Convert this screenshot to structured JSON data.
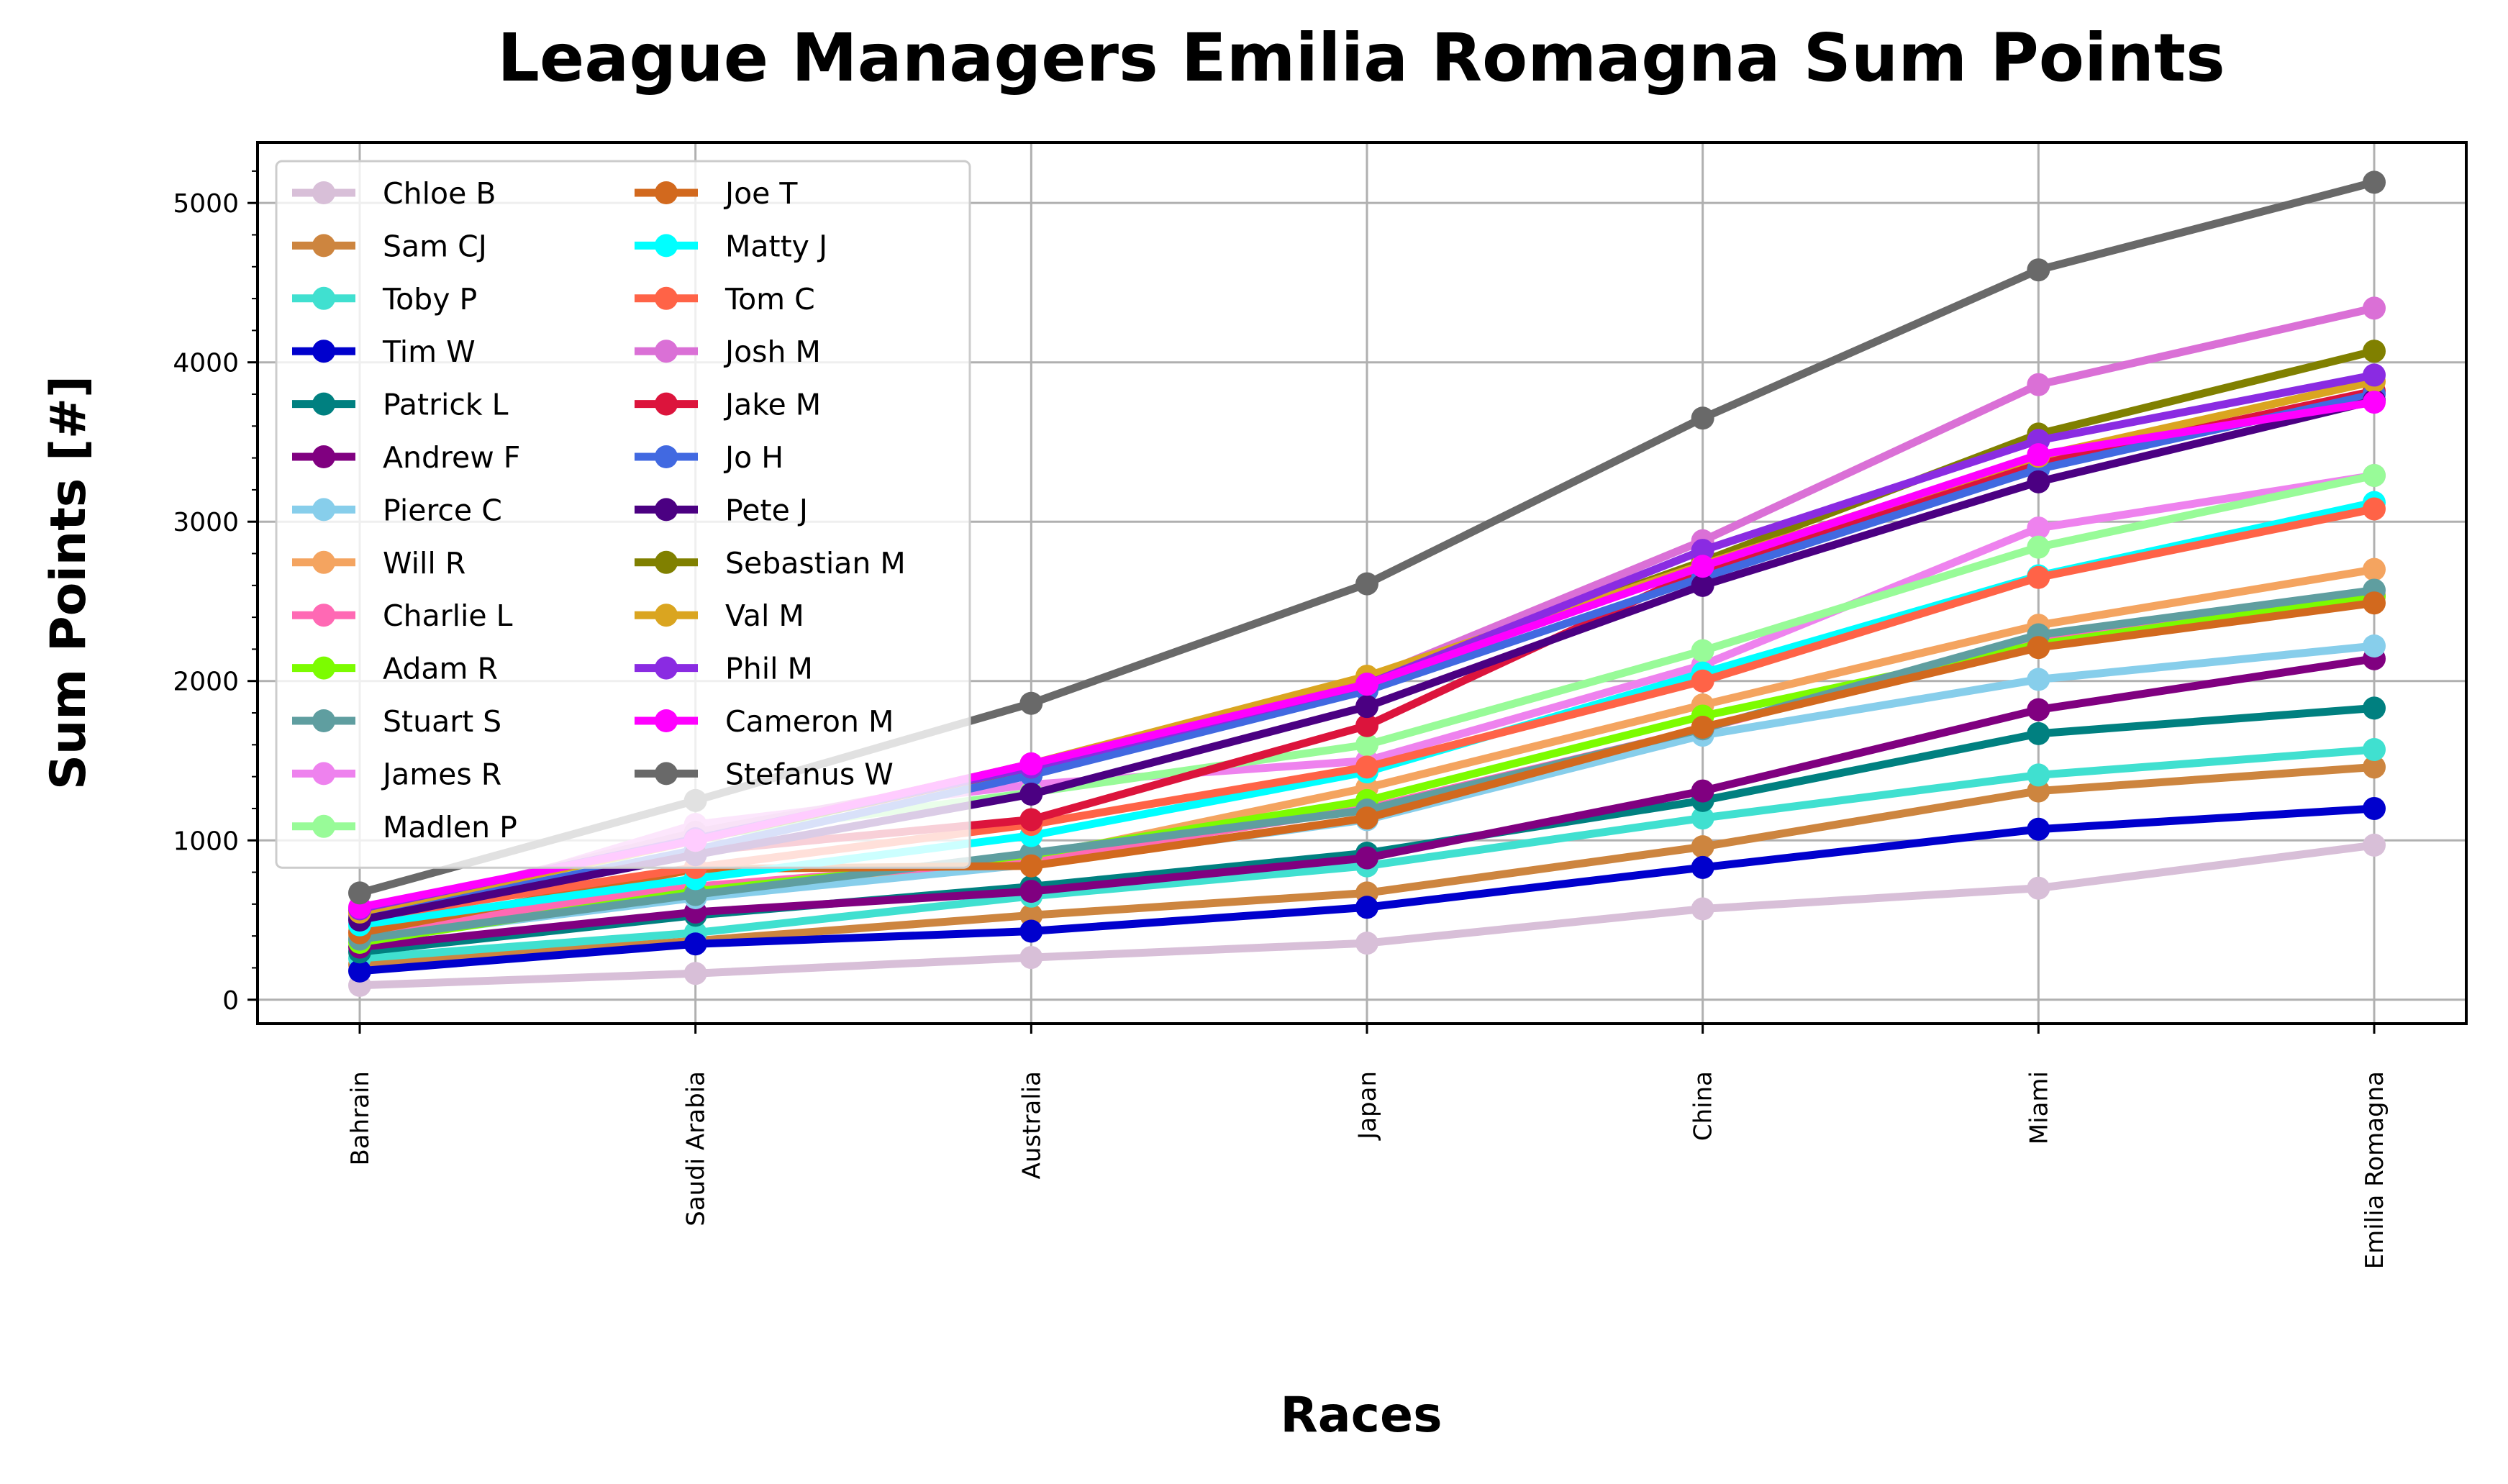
{
  "chart_data": {
    "type": "line",
    "title": "League Managers Emilia Romagna Sum Points",
    "xlabel": "Races",
    "ylabel": "Sum Points [#]",
    "categories": [
      "Bahrain",
      "Saudi Arabia",
      "Australia",
      "Japan",
      "China",
      "Miami",
      "Emilia Romagna"
    ],
    "yticks": [
      0,
      1000,
      2000,
      3000,
      4000,
      5000
    ],
    "ylim": [
      -150,
      5380
    ],
    "grid": true,
    "legend_position": "upper-left",
    "legend_columns": 2,
    "series": [
      {
        "name": "Chloe B",
        "color": "#d8bfd8",
        "values": [
          90,
          165,
          265,
          355,
          570,
          700,
          970
        ]
      },
      {
        "name": "Sam CJ",
        "color": "#cd853f",
        "values": [
          220,
          370,
          530,
          670,
          960,
          1310,
          1460
        ]
      },
      {
        "name": "Toby P",
        "color": "#40e0d0",
        "values": [
          260,
          420,
          650,
          840,
          1140,
          1410,
          1570
        ]
      },
      {
        "name": "Tim W",
        "color": "#0000cd",
        "values": [
          180,
          350,
          430,
          580,
          830,
          1070,
          1200
        ]
      },
      {
        "name": "Patrick L",
        "color": "#008080",
        "values": [
          300,
          530,
          710,
          920,
          1250,
          1670,
          1830
        ]
      },
      {
        "name": "Andrew F",
        "color": "#800080",
        "values": [
          330,
          550,
          680,
          890,
          1310,
          1820,
          2140
        ]
      },
      {
        "name": "Pierce C",
        "color": "#87ceeb",
        "values": [
          380,
          640,
          850,
          1130,
          1660,
          2010,
          2220
        ]
      },
      {
        "name": "Will R",
        "color": "#f4a460",
        "values": [
          400,
          690,
          890,
          1330,
          1850,
          2350,
          2700
        ]
      },
      {
        "name": "Charlie L",
        "color": "#ff69b4",
        "values": [
          430,
          710,
          880,
          1200,
          1700,
          2260,
          2540
        ]
      },
      {
        "name": "Adam R",
        "color": "#7cfc00",
        "values": [
          360,
          680,
          910,
          1250,
          1780,
          2230,
          2530
        ]
      },
      {
        "name": "Stuart S",
        "color": "#5f9ea0",
        "values": [
          380,
          660,
          920,
          1190,
          1700,
          2290,
          2570
        ]
      },
      {
        "name": "James R",
        "color": "#ee82ee",
        "values": [
          470,
          1100,
          1350,
          1500,
          2100,
          2960,
          3290
        ]
      },
      {
        "name": "Madlen P",
        "color": "#98fb98",
        "values": [
          450,
          1020,
          1300,
          1600,
          2190,
          2840,
          3290
        ]
      },
      {
        "name": "Joe T",
        "color": "#d2691e",
        "values": [
          420,
          820,
          840,
          1140,
          1710,
          2210,
          2490
        ]
      },
      {
        "name": "Matty J",
        "color": "#00ffff",
        "values": [
          470,
          760,
          1030,
          1430,
          2050,
          2660,
          3120
        ]
      },
      {
        "name": "Tom C",
        "color": "#ff6347",
        "values": [
          510,
          830,
          1100,
          1460,
          2000,
          2650,
          3080
        ]
      },
      {
        "name": "Josh M",
        "color": "#da70d6",
        "values": [
          540,
          1050,
          1440,
          2010,
          2880,
          3860,
          4340
        ]
      },
      {
        "name": "Jake M",
        "color": "#dc143c",
        "values": [
          520,
          930,
          1130,
          1720,
          2700,
          3370,
          3820
        ]
      },
      {
        "name": "Jo H",
        "color": "#4169e1",
        "values": [
          510,
          940,
          1410,
          1940,
          2650,
          3330,
          3800
        ]
      },
      {
        "name": "Pete J",
        "color": "#4b0082",
        "values": [
          500,
          910,
          1290,
          1840,
          2600,
          3250,
          3760
        ]
      },
      {
        "name": "Sebastian M",
        "color": "#808000",
        "values": [
          560,
          1000,
          1460,
          2000,
          2750,
          3550,
          4070
        ]
      },
      {
        "name": "Val M",
        "color": "#daa520",
        "values": [
          550,
          1000,
          1480,
          2030,
          2730,
          3410,
          3880
        ]
      },
      {
        "name": "Phil M",
        "color": "#8a2be2",
        "values": [
          570,
          1010,
          1460,
          1980,
          2820,
          3510,
          3920
        ]
      },
      {
        "name": "Cameron M",
        "color": "#ff00ff",
        "values": [
          580,
          1000,
          1480,
          1980,
          2720,
          3420,
          3750
        ]
      },
      {
        "name": "Stefanus W",
        "color": "#696969",
        "values": [
          670,
          1250,
          1860,
          2610,
          3650,
          4580,
          5130
        ]
      }
    ]
  }
}
